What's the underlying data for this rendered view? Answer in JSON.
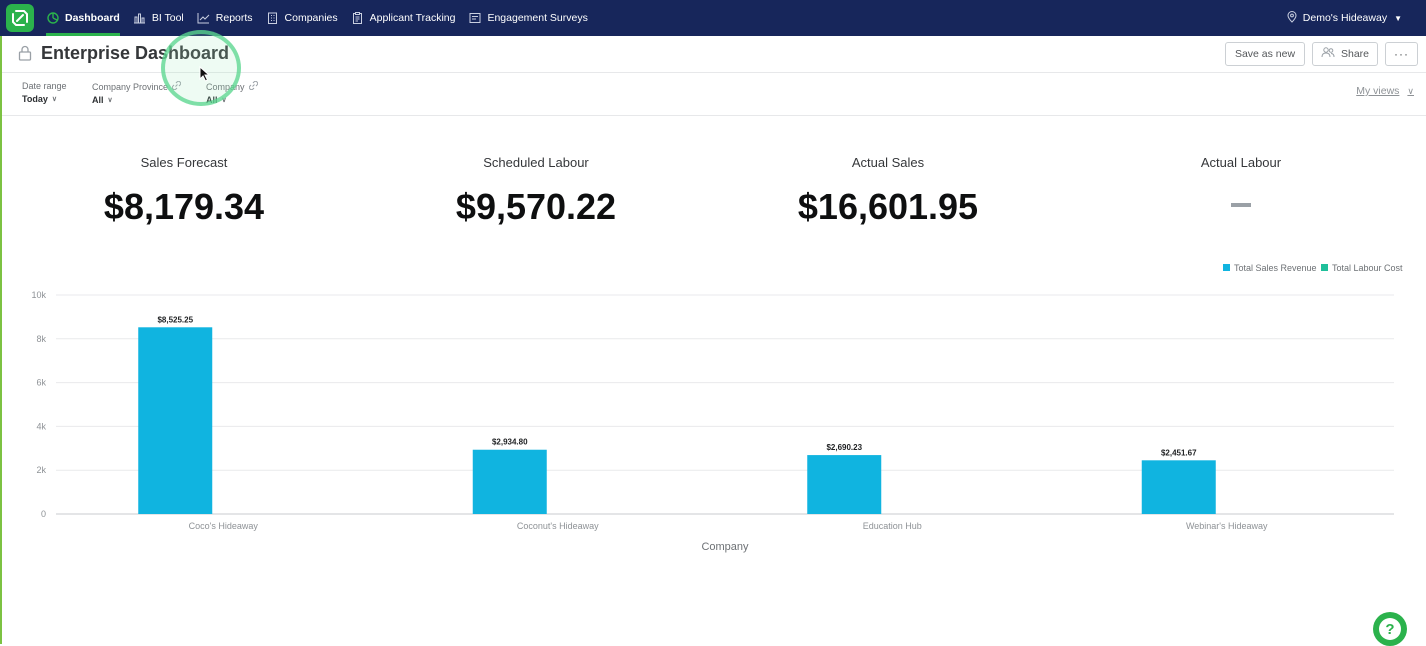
{
  "nav": {
    "items": [
      {
        "label": "Dashboard",
        "icon": "dashboard-icon",
        "active": true
      },
      {
        "label": "BI Tool",
        "icon": "bar-chart-icon",
        "active": false
      },
      {
        "label": "Reports",
        "icon": "trend-icon",
        "active": false
      },
      {
        "label": "Companies",
        "icon": "building-icon",
        "active": false
      },
      {
        "label": "Applicant Tracking",
        "icon": "clipboard-icon",
        "active": false
      },
      {
        "label": "Engagement Surveys",
        "icon": "survey-icon",
        "active": false
      }
    ],
    "account": "Demo's Hideaway"
  },
  "header": {
    "title": "Enterprise Dashboard",
    "save_label": "Save as new",
    "share_label": "Share",
    "more_label": "···"
  },
  "filters": [
    {
      "label": "Date range",
      "value": "Today",
      "linked": false
    },
    {
      "label": "Company Province",
      "value": "All",
      "linked": true
    },
    {
      "label": "Company",
      "value": "All",
      "linked": true
    }
  ],
  "my_views": "My views",
  "kpis": [
    {
      "label": "Sales Forecast",
      "value": "$8,179.34"
    },
    {
      "label": "Scheduled Labour",
      "value": "$9,570.22"
    },
    {
      "label": "Actual Sales",
      "value": "$16,601.95"
    },
    {
      "label": "Actual Labour",
      "value": ""
    }
  ],
  "colors": {
    "nav_bg": "#17265b",
    "brand_green": "#2bb24c",
    "sales_revenue": "#10b4e0",
    "labour_cost": "#1fbf9a"
  },
  "chart_data": {
    "type": "bar",
    "categories": [
      "Coco's Hideaway",
      "Coconut's Hideaway",
      "Education Hub",
      "Webinar's Hideaway"
    ],
    "series": [
      {
        "name": "Total Sales Revenue",
        "values": [
          8525.25,
          2934.8,
          2690.23,
          2451.67
        ],
        "labels": [
          "$8,525.25",
          "$2,934.80",
          "$2,690.23",
          "$2,451.67"
        ]
      },
      {
        "name": "Total Labour Cost",
        "values": [
          null,
          null,
          null,
          null
        ]
      }
    ],
    "xlabel": "Company",
    "ylabel": "",
    "ylim": [
      0,
      10000
    ],
    "yticks": [
      0,
      2000,
      4000,
      6000,
      8000,
      10000
    ],
    "ytick_labels": [
      "0",
      "2k",
      "4k",
      "6k",
      "8k",
      "10k"
    ],
    "grid": true,
    "legend": "top-right"
  }
}
